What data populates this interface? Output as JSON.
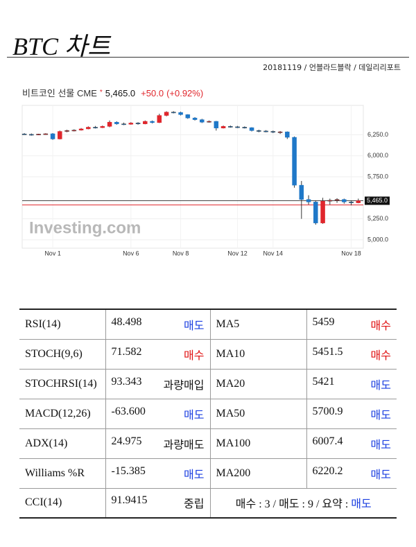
{
  "header": {
    "title": "BTC 차트",
    "subtitle": "20181119 / 언블라드블락 / 데일리리포트"
  },
  "chart_data": {
    "type": "candlestick",
    "title": "비트코인 선물 CME",
    "marker": "*",
    "last_price": {
      "value": 5465,
      "label": "5,465.0"
    },
    "change": "+50.0",
    "change_pct": "(+0.92%)",
    "watermark": "Investing.com",
    "prev_close": 5415,
    "up_color": "#e0262c",
    "down_color": "#1f78c8",
    "grid": true,
    "categories": [
      null,
      null,
      null,
      null,
      "Nov 1",
      null,
      null,
      null,
      null,
      null,
      null,
      null,
      null,
      null,
      null,
      "Nov 6",
      null,
      null,
      null,
      null,
      null,
      null,
      "Nov 8",
      null,
      null,
      null,
      null,
      null,
      null,
      null,
      "Nov 12",
      null,
      null,
      null,
      null,
      "Nov 14",
      null,
      null,
      null,
      null,
      null,
      null,
      null,
      null,
      null,
      null,
      "Nov 18",
      null
    ],
    "open": [
      6260,
      6255,
      6250,
      6258,
      6262,
      6200,
      6290,
      6300,
      6305,
      6320,
      6340,
      6335,
      6350,
      6400,
      6380,
      6375,
      6390,
      6380,
      6410,
      6395,
      6480,
      6520,
      6515,
      6490,
      6450,
      6430,
      6400,
      6410,
      6330,
      6350,
      6345,
      6340,
      6335,
      6300,
      6295,
      6290,
      6280,
      6285,
      6220,
      5650,
      5480,
      5450,
      5200,
      5460,
      5470,
      5480,
      5450,
      5440
    ],
    "high": [
      6270,
      6265,
      6262,
      6268,
      6270,
      6300,
      6310,
      6315,
      6330,
      6350,
      6355,
      6360,
      6420,
      6410,
      6395,
      6400,
      6400,
      6420,
      6420,
      6500,
      6530,
      6530,
      6525,
      6495,
      6460,
      6440,
      6420,
      6415,
      6360,
      6360,
      6355,
      6350,
      6340,
      6310,
      6305,
      6300,
      6295,
      6290,
      6230,
      5700,
      5530,
      5470,
      5500,
      5490,
      5495,
      5490,
      5470,
      5490
    ],
    "low": [
      6250,
      6240,
      6245,
      6250,
      6190,
      6195,
      6280,
      6290,
      6300,
      6315,
      6325,
      6330,
      6340,
      6370,
      6365,
      6370,
      6370,
      6375,
      6385,
      6390,
      6470,
      6505,
      6480,
      6440,
      6420,
      6390,
      6395,
      6300,
      6325,
      6335,
      6330,
      6325,
      6290,
      6280,
      6280,
      6270,
      6260,
      6200,
      5620,
      5250,
      5420,
      5180,
      5190,
      5420,
      5440,
      5430,
      5410,
      5435
    ],
    "close": [
      6255,
      6250,
      6258,
      6262,
      6200,
      6290,
      6300,
      6305,
      6320,
      6340,
      6335,
      6350,
      6400,
      6380,
      6375,
      6390,
      6380,
      6410,
      6395,
      6480,
      6520,
      6515,
      6490,
      6450,
      6430,
      6400,
      6410,
      6330,
      6350,
      6345,
      6340,
      6335,
      6300,
      6295,
      6290,
      6280,
      6285,
      6220,
      5650,
      5480,
      5450,
      5200,
      5460,
      5470,
      5480,
      5450,
      5440,
      5465
    ],
    "ylim": [
      4900,
      6600
    ],
    "yticks": [
      {
        "value": 6250,
        "label": "6,250.0"
      },
      {
        "value": 6000,
        "label": "6,000.0"
      },
      {
        "value": 5750,
        "label": "5,750.0"
      },
      {
        "value": 5250,
        "label": "5,250.0"
      },
      {
        "value": 5000,
        "label": "5,000.0"
      }
    ]
  },
  "table": {
    "rows": [
      {
        "left": {
          "name": "RSI(14)",
          "value": "48.498",
          "signal": "매도"
        },
        "right": {
          "name": "MA5",
          "value": "5459",
          "signal": "매수"
        }
      },
      {
        "left": {
          "name": "STOCH(9,6)",
          "value": "71.582",
          "signal": "매수"
        },
        "right": {
          "name": "MA10",
          "value": "5451.5",
          "signal": "매수"
        }
      },
      {
        "left": {
          "name": "STOCHRSI(14)",
          "value": "93.343",
          "signal": "과량매입"
        },
        "right": {
          "name": "MA20",
          "value": "5421",
          "signal": "매도"
        }
      },
      {
        "left": {
          "name": "MACD(12,26)",
          "value": "-63.600",
          "signal": "매도"
        },
        "right": {
          "name": "MA50",
          "value": "5700.9",
          "signal": "매도"
        }
      },
      {
        "left": {
          "name": "ADX(14)",
          "value": "24.975",
          "signal": "과량매도"
        },
        "right": {
          "name": "MA100",
          "value": "6007.4",
          "signal": "매도"
        }
      },
      {
        "left": {
          "name": "Williams %R",
          "value": "-15.385",
          "signal": "매도"
        },
        "right": {
          "name": "MA200",
          "value": "6220.2",
          "signal": "매도"
        }
      },
      {
        "left": {
          "name": "CCI(14)",
          "value": "91.9415",
          "signal": "중립"
        }
      }
    ],
    "summary_text": "매수 : 3 / 매도 : 9 / 요약 :",
    "summary_signal": "매도"
  }
}
